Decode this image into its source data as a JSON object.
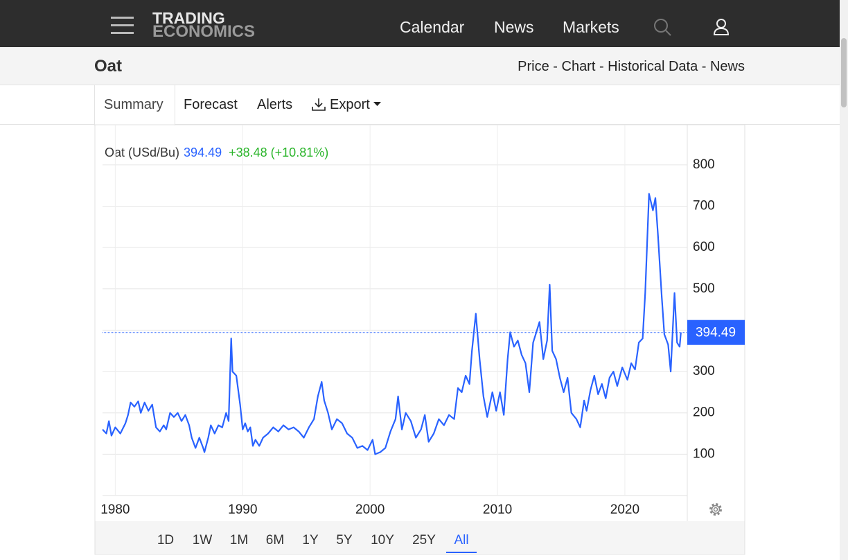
{
  "nav": {
    "logo": [
      "TRADING",
      "ECONOMICS"
    ],
    "links": [
      "Calendar",
      "News",
      "Markets"
    ]
  },
  "header": {
    "title": "Oat",
    "links": "Price - Chart - Historical Data - News"
  },
  "tabs": [
    "Summary",
    "Forecast",
    "Alerts",
    "Export"
  ],
  "ranges": [
    "1D",
    "1W",
    "1M",
    "6M",
    "1Y",
    "5Y",
    "10Y",
    "25Y",
    "All"
  ],
  "active_range": 8,
  "chart_data": {
    "type": "line",
    "label": "Oat (USd/Bu)",
    "last_value": 394.49,
    "change": "+38.48 (+10.81%)",
    "color": "#2962ff",
    "grid": true,
    "xlim": [
      1979,
      2024.9
    ],
    "xticks": [
      1980,
      1990,
      2000,
      2010,
      2020
    ],
    "ylim": [
      0,
      897
    ],
    "yticks": [
      100,
      200,
      300,
      400,
      500,
      600,
      700,
      800
    ],
    "x": [
      1979.0,
      1979.3,
      1979.5,
      1979.7,
      1980.0,
      1980.4,
      1980.8,
      1981.0,
      1981.2,
      1981.5,
      1981.8,
      1982.0,
      1982.3,
      1982.6,
      1982.9,
      1983.2,
      1983.5,
      1983.8,
      1984.0,
      1984.3,
      1984.6,
      1984.9,
      1985.2,
      1985.5,
      1985.8,
      1986.0,
      1986.3,
      1986.6,
      1986.9,
      1987.0,
      1987.3,
      1987.5,
      1987.8,
      1988.1,
      1988.4,
      1988.7,
      1988.9,
      1989.1,
      1989.2,
      1989.5,
      1989.8,
      1990.0,
      1990.2,
      1990.4,
      1990.6,
      1990.8,
      1991.0,
      1991.3,
      1991.6,
      1992.0,
      1992.4,
      1992.8,
      1993.2,
      1993.6,
      1994.0,
      1994.4,
      1994.8,
      1995.2,
      1995.6,
      1995.9,
      1996.2,
      1996.4,
      1996.7,
      1997.0,
      1997.4,
      1997.8,
      1998.2,
      1998.6,
      1999.0,
      1999.4,
      1999.8,
      2000.2,
      2000.4,
      2000.8,
      2001.2,
      2001.6,
      2002.0,
      2002.2,
      2002.5,
      2002.8,
      2003.2,
      2003.6,
      2004.0,
      2004.3,
      2004.6,
      2005.0,
      2005.4,
      2005.8,
      2006.2,
      2006.6,
      2006.9,
      2007.2,
      2007.5,
      2007.8,
      2008.0,
      2008.3,
      2008.6,
      2008.9,
      2009.2,
      2009.6,
      2009.9,
      2010.2,
      2010.5,
      2010.8,
      2011.0,
      2011.3,
      2011.6,
      2011.9,
      2012.2,
      2012.5,
      2012.8,
      2013.0,
      2013.3,
      2013.6,
      2013.9,
      2014.1,
      2014.3,
      2014.6,
      2014.9,
      2015.2,
      2015.5,
      2015.8,
      2016.2,
      2016.5,
      2016.8,
      2017.0,
      2017.3,
      2017.6,
      2017.9,
      2018.2,
      2018.5,
      2018.8,
      2019.1,
      2019.4,
      2019.8,
      2020.2,
      2020.5,
      2020.8,
      2021.1,
      2021.4,
      2021.6,
      2021.9,
      2022.2,
      2022.4,
      2022.6,
      2022.9,
      2023.1,
      2023.4,
      2023.6,
      2023.9,
      2024.1,
      2024.3,
      2024.4
    ],
    "values": [
      160,
      150,
      180,
      145,
      165,
      150,
      175,
      195,
      225,
      215,
      228,
      200,
      225,
      205,
      220,
      165,
      155,
      170,
      160,
      200,
      190,
      200,
      180,
      195,
      170,
      140,
      115,
      140,
      115,
      105,
      140,
      170,
      150,
      170,
      165,
      200,
      180,
      380,
      300,
      290,
      220,
      160,
      175,
      155,
      165,
      120,
      135,
      120,
      140,
      150,
      165,
      155,
      170,
      160,
      165,
      155,
      140,
      165,
      185,
      240,
      275,
      230,
      200,
      160,
      185,
      175,
      150,
      140,
      115,
      120,
      110,
      135,
      100,
      105,
      115,
      155,
      185,
      240,
      160,
      200,
      180,
      140,
      160,
      195,
      130,
      150,
      185,
      170,
      195,
      185,
      260,
      250,
      290,
      270,
      350,
      440,
      330,
      240,
      190,
      250,
      205,
      250,
      195,
      330,
      395,
      360,
      375,
      340,
      320,
      250,
      370,
      390,
      420,
      330,
      375,
      510,
      350,
      330,
      285,
      250,
      285,
      200,
      185,
      165,
      230,
      205,
      255,
      290,
      245,
      270,
      235,
      285,
      300,
      265,
      310,
      280,
      320,
      305,
      370,
      380,
      490,
      730,
      690,
      720,
      630,
      480,
      390,
      365,
      300,
      490,
      370,
      360,
      394.49
    ]
  }
}
